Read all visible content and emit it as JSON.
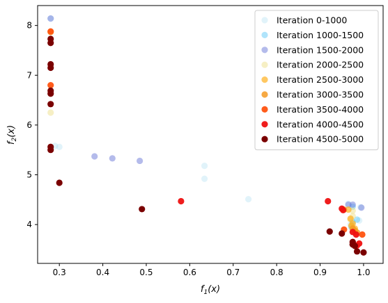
{
  "chart_data": {
    "type": "scatter",
    "title": "",
    "xlabel": "f_1(x)",
    "ylabel": "f_2(x)",
    "xlim": [
      0.25,
      1.045
    ],
    "ylim": [
      3.22,
      8.4
    ],
    "xticks": [
      0.3,
      0.4,
      0.5,
      0.6,
      0.7,
      0.8,
      0.9,
      1.0
    ],
    "xtick_labels": [
      "0.3",
      "0.4",
      "0.5",
      "0.6",
      "0.7",
      "0.8",
      "0.9",
      "1.0"
    ],
    "yticks": [
      4,
      5,
      6,
      7,
      8
    ],
    "ytick_labels": [
      "4",
      "5",
      "6",
      "7",
      "8"
    ],
    "grid": false,
    "legend_position": "top-right",
    "series": [
      {
        "name": "Iteration 0-1000",
        "color": "#87ceeb",
        "opacity": 0.25,
        "points": [
          [
            0.28,
            8.14
          ],
          [
            0.29,
            5.58
          ],
          [
            0.3,
            5.56
          ],
          [
            0.634,
            5.18
          ],
          [
            0.634,
            4.92
          ],
          [
            0.735,
            4.51
          ],
          [
            0.965,
            4.42
          ],
          [
            0.993,
            4.35
          ],
          [
            0.99,
            4.08
          ],
          [
            0.97,
            4.0
          ]
        ]
      },
      {
        "name": "Iteration 1000-1500",
        "color": "#4fc3f7",
        "opacity": 0.45,
        "points": [
          [
            0.975,
            4.36
          ],
          [
            0.985,
            4.1
          ],
          [
            0.975,
            4.05
          ],
          [
            0.972,
            3.95
          ]
        ]
      },
      {
        "name": "Iteration 1500-2000",
        "color": "#6a78d8",
        "opacity": 0.5,
        "points": [
          [
            0.28,
            8.14
          ],
          [
            0.381,
            5.37
          ],
          [
            0.422,
            5.33
          ],
          [
            0.485,
            5.28
          ],
          [
            0.965,
            4.4
          ],
          [
            0.975,
            4.4
          ],
          [
            0.995,
            4.34
          ]
        ]
      },
      {
        "name": "Iteration 2000-2500",
        "color": "#eee08a",
        "opacity": 0.5,
        "points": [
          [
            0.28,
            6.25
          ],
          [
            0.975,
            4.28
          ],
          [
            0.975,
            4.17
          ],
          [
            0.97,
            4.1
          ]
        ]
      },
      {
        "name": "Iteration 2500-3000",
        "color": "#ffb020",
        "opacity": 0.7,
        "points": [
          [
            0.97,
            4.12
          ],
          [
            0.975,
            4.02
          ],
          [
            0.972,
            3.98
          ],
          [
            0.98,
            3.92
          ],
          [
            0.965,
            4.3
          ]
        ]
      },
      {
        "name": "Iteration 3000-3500",
        "color": "#f59a23",
        "opacity": 0.85,
        "points": [
          [
            0.28,
            7.87
          ],
          [
            0.955,
            4.3
          ],
          [
            0.975,
            3.92
          ],
          [
            0.98,
            3.88
          ],
          [
            0.985,
            3.84
          ]
        ]
      },
      {
        "name": "Iteration 3500-4000",
        "color": "#ff5310",
        "opacity": 0.95,
        "points": [
          [
            0.28,
            7.88
          ],
          [
            0.28,
            6.8
          ],
          [
            0.955,
            3.9
          ],
          [
            0.997,
            3.8
          ]
        ]
      },
      {
        "name": "Iteration 4000-4500",
        "color": "#ee1111",
        "opacity": 0.95,
        "points": [
          [
            0.58,
            4.47
          ],
          [
            0.918,
            4.47
          ],
          [
            0.95,
            4.32
          ],
          [
            0.953,
            4.29
          ],
          [
            0.975,
            3.85
          ],
          [
            0.983,
            3.8
          ],
          [
            0.975,
            3.65
          ],
          [
            0.99,
            3.62
          ],
          [
            0.985,
            3.58
          ]
        ]
      },
      {
        "name": "Iteration 4500-5000",
        "color": "#7a0000",
        "opacity": 1.0,
        "points": [
          [
            0.28,
            7.73
          ],
          [
            0.28,
            7.65
          ],
          [
            0.28,
            7.22
          ],
          [
            0.28,
            7.15
          ],
          [
            0.28,
            6.69
          ],
          [
            0.28,
            6.63
          ],
          [
            0.28,
            6.42
          ],
          [
            0.28,
            5.56
          ],
          [
            0.28,
            5.5
          ],
          [
            0.3,
            4.84
          ],
          [
            0.49,
            4.31
          ],
          [
            0.922,
            3.86
          ],
          [
            0.95,
            3.82
          ],
          [
            0.975,
            3.65
          ],
          [
            0.975,
            3.6
          ],
          [
            0.98,
            3.57
          ],
          [
            0.985,
            3.46
          ],
          [
            1.0,
            3.44
          ],
          [
            0.975,
            3.6
          ]
        ]
      }
    ]
  }
}
